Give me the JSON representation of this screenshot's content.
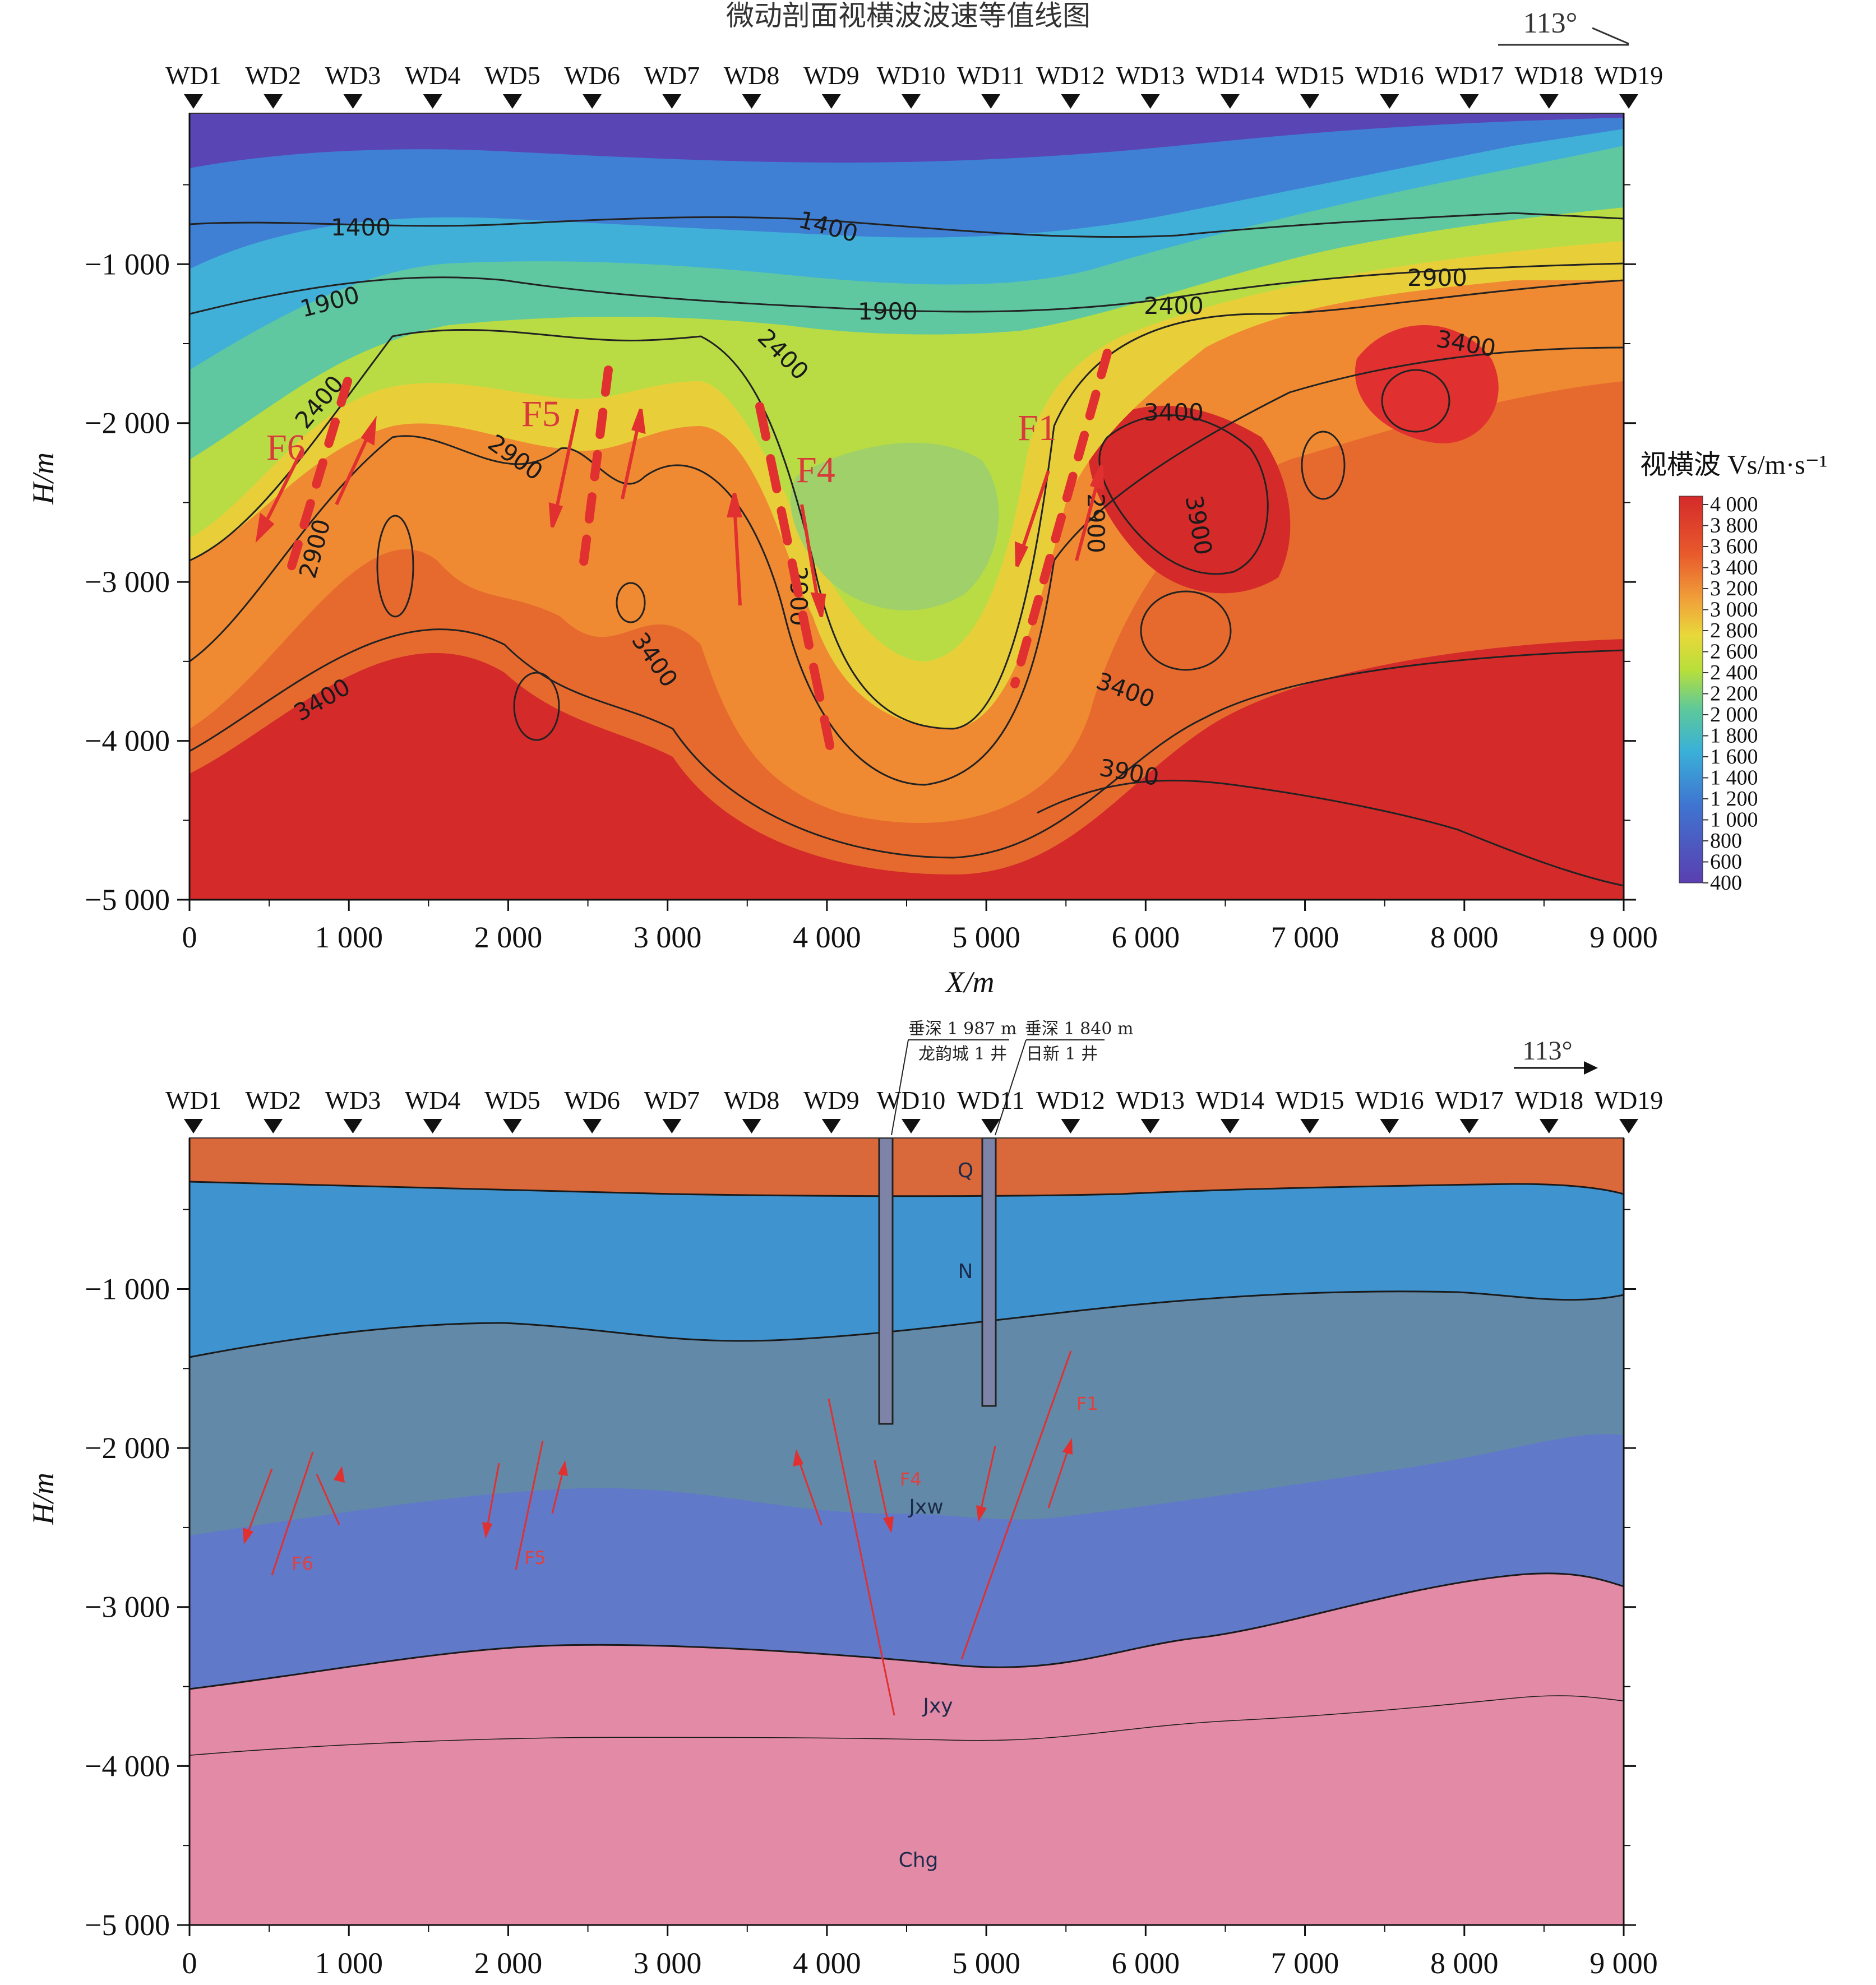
{
  "top_panel": {
    "title": "微动剖面视横波波速等值线图",
    "azimuth": "113°",
    "stations": [
      "WD1",
      "WD2",
      "WD3",
      "WD4",
      "WD5",
      "WD6",
      "WD7",
      "WD8",
      "WD9",
      "WD10",
      "WD11",
      "WD12",
      "WD13",
      "WD14",
      "WD15",
      "WD16",
      "WD17",
      "WD18",
      "WD19"
    ],
    "y_axis_label": "H/m",
    "x_axis_label": "X/m",
    "y_ticks": [
      "−1 000",
      "−2 000",
      "−3 000",
      "−4 000",
      "−5 000"
    ],
    "x_ticks": [
      "0",
      "1 000",
      "2 000",
      "3 000",
      "4 000",
      "5 000",
      "6 000",
      "7 000",
      "8 000",
      "9 000"
    ],
    "contour_labels": [
      "1400",
      "1400",
      "1900",
      "1900",
      "2400",
      "2400",
      "2400",
      "2900",
      "2900",
      "2900",
      "2900",
      "2900",
      "3400",
      "3400",
      "3400",
      "3400",
      "3900",
      "3900",
      "3400",
      "2900"
    ],
    "fault_labels": [
      "F6",
      "F5",
      "F4",
      "F1"
    ],
    "legend_title": "视横波 Vs/m·s⁻¹",
    "legend_ticks": [
      "4 000",
      "3 800",
      "3 600",
      "3 400",
      "3 200",
      "3 000",
      "2 800",
      "2 600",
      "2 400",
      "2 200",
      "2 000",
      "1 800",
      "1 600",
      "1 400",
      "1 200",
      "1 000",
      "800",
      "600",
      "400"
    ]
  },
  "bottom_panel": {
    "azimuth": "113°",
    "stations": [
      "WD1",
      "WD2",
      "WD3",
      "WD4",
      "WD5",
      "WD6",
      "WD7",
      "WD8",
      "WD9",
      "WD10",
      "WD11",
      "WD12",
      "WD13",
      "WD14",
      "WD15",
      "WD16",
      "WD17",
      "WD18",
      "WD19"
    ],
    "y_axis_label": "H/m",
    "y_ticks": [
      "−1 000",
      "−2 000",
      "−3 000",
      "−4 000",
      "−5 000"
    ],
    "x_ticks": [
      "0",
      "1 000",
      "2 000",
      "3 000",
      "4 000",
      "5 000",
      "6 000",
      "7 000",
      "8 000",
      "9 000"
    ],
    "well1": {
      "depth": "垂深 1 987 m",
      "name": "龙韵城 1 井"
    },
    "well2": {
      "depth": "垂深 1 840 m",
      "name": "日新 1 井"
    },
    "layers": [
      "Q",
      "N",
      "Jxw",
      "Jxy",
      "Chg"
    ],
    "fault_labels": [
      "F6",
      "F5",
      "F4",
      "F1"
    ]
  },
  "colors": {
    "Q": "#d9683a",
    "N": "#3f93cf",
    "Jxw": "#6289a8",
    "Jxy": "#6079c9",
    "Chg": "#e28aa6",
    "fault": "#e03030"
  }
}
